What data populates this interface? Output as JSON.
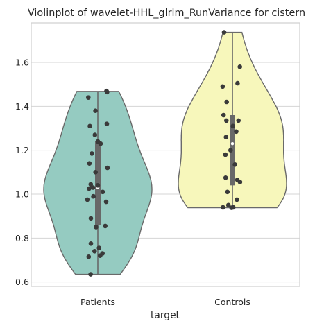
{
  "chart_data": {
    "type": "violin",
    "title": "Violinplot of wavelet-HHL_glrlm_RunVariance for cistern",
    "xlabel": "target",
    "ylabel": "",
    "ylim": [
      0.58,
      1.78
    ],
    "yticks": [
      0.6,
      0.8,
      1.0,
      1.2,
      1.4,
      1.6
    ],
    "ytick_labels": [
      "0.6",
      "0.8",
      "1.0",
      "1.2",
      "1.4",
      "1.6"
    ],
    "grid": "horizontal",
    "categories": [
      "Patients",
      "Controls"
    ],
    "colors": {
      "Patients": "#95cbc1",
      "Controls": "#f7f7bb",
      "outline": "#6a6a6a",
      "points": "#3a3a3a",
      "box": "#686868",
      "grid": "#d5d5d5",
      "frame": "#cfcfcf"
    },
    "series": [
      {
        "category": "Patients",
        "min": 0.635,
        "max": 1.468,
        "q1": 0.86,
        "median": 1.03,
        "q3": 1.24,
        "points": [
          1.47,
          1.465,
          1.44,
          1.38,
          1.32,
          1.31,
          1.27,
          1.24,
          1.23,
          1.185,
          1.14,
          1.12,
          1.1,
          1.045,
          1.04,
          1.03,
          1.025,
          1.01,
          0.99,
          0.99,
          0.975,
          0.965,
          0.89,
          0.855,
          0.85,
          0.775,
          0.755,
          0.74,
          0.73,
          0.72,
          0.715,
          0.635
        ]
      },
      {
        "category": "Controls",
        "min": 0.938,
        "max": 1.737,
        "q1": 1.04,
        "median": 1.23,
        "q3": 1.36,
        "points": [
          1.737,
          1.58,
          1.505,
          1.49,
          1.42,
          1.36,
          1.335,
          1.335,
          1.31,
          1.285,
          1.26,
          1.2,
          1.18,
          1.135,
          1.075,
          1.065,
          1.055,
          1.01,
          0.975,
          0.95,
          0.94,
          0.94,
          0.938
        ]
      }
    ]
  }
}
